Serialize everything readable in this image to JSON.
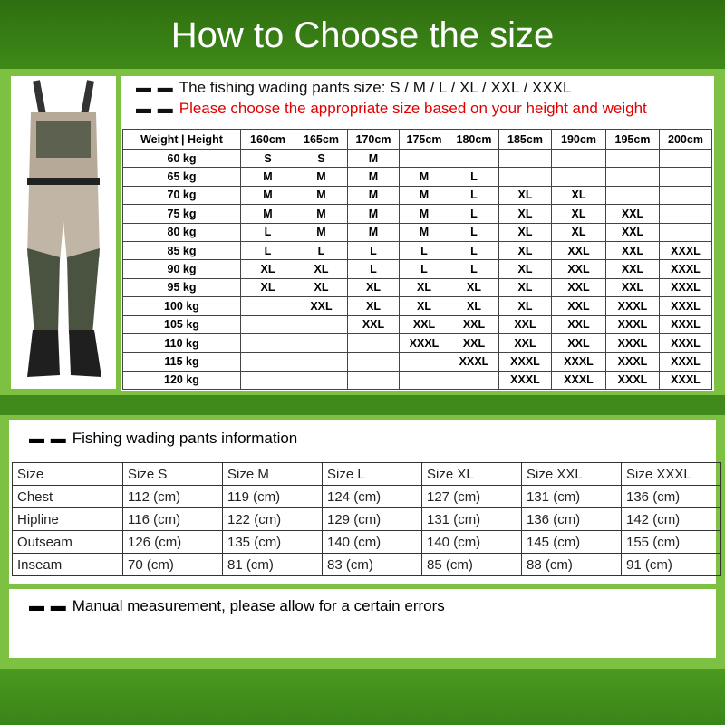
{
  "title": "How to Choose the size",
  "notes": {
    "sizes": "The fishing wading pants size: S / M /   L / XL / XXL / XXXL",
    "advice": "Please choose the appropriate size based on your height and weight",
    "dash": "▬ ▬"
  },
  "colors": {
    "header": "#2f6e10",
    "accent": "#7cc142",
    "warning_text": "#e00000"
  },
  "size_chart": {
    "corner": "Weight | Height",
    "heights": [
      "160cm",
      "165cm",
      "170cm",
      "175cm",
      "180cm",
      "185cm",
      "190cm",
      "195cm",
      "200cm"
    ],
    "rows": [
      {
        "weight": "60 kg",
        "sizes": [
          "S",
          "S",
          "M",
          "",
          "",
          "",
          "",
          "",
          ""
        ]
      },
      {
        "weight": "65 kg",
        "sizes": [
          "M",
          "M",
          "M",
          "M",
          "L",
          "",
          "",
          "",
          ""
        ]
      },
      {
        "weight": "70 kg",
        "sizes": [
          "M",
          "M",
          "M",
          "M",
          "L",
          "XL",
          "XL",
          "",
          ""
        ]
      },
      {
        "weight": "75 kg",
        "sizes": [
          "M",
          "M",
          "M",
          "M",
          "L",
          "XL",
          "XL",
          "XXL",
          ""
        ]
      },
      {
        "weight": "80 kg",
        "sizes": [
          "L",
          "M",
          "M",
          "M",
          "L",
          "XL",
          "XL",
          "XXL",
          ""
        ]
      },
      {
        "weight": "85 kg",
        "sizes": [
          "L",
          "L",
          "L",
          "L",
          "L",
          "XL",
          "XXL",
          "XXL",
          "XXXL"
        ]
      },
      {
        "weight": "90 kg",
        "sizes": [
          "XL",
          "XL",
          "L",
          "L",
          "L",
          "XL",
          "XXL",
          "XXL",
          "XXXL"
        ]
      },
      {
        "weight": "95 kg",
        "sizes": [
          "XL",
          "XL",
          "XL",
          "XL",
          "XL",
          "XL",
          "XXL",
          "XXL",
          "XXXL"
        ]
      },
      {
        "weight": "100 kg",
        "sizes": [
          "",
          "XXL",
          "XL",
          "XL",
          "XL",
          "XL",
          "XXL",
          "XXXL",
          "XXXL"
        ]
      },
      {
        "weight": "105 kg",
        "sizes": [
          "",
          "",
          "XXL",
          "XXL",
          "XXL",
          "XXL",
          "XXL",
          "XXXL",
          "XXXL"
        ]
      },
      {
        "weight": "110 kg",
        "sizes": [
          "",
          "",
          "",
          "XXXL",
          "XXL",
          "XXL",
          "XXL",
          "XXXL",
          "XXXL"
        ]
      },
      {
        "weight": "115 kg",
        "sizes": [
          "",
          "",
          "",
          "",
          "XXXL",
          "XXXL",
          "XXXL",
          "XXXL",
          "XXXL"
        ]
      },
      {
        "weight": "120 kg",
        "sizes": [
          "",
          "",
          "",
          "",
          "",
          "XXXL",
          "XXXL",
          "XXXL",
          "XXXL"
        ]
      }
    ]
  },
  "info": {
    "title": "Fishing  wading pants information",
    "header": [
      "Size",
      "Size S",
      "Size M",
      "Size L",
      "Size XL",
      "Size XXL",
      "Size XXXL"
    ],
    "rows": [
      [
        "Chest",
        "112 (cm)",
        "119 (cm)",
        "124 (cm)",
        "127 (cm)",
        "131 (cm)",
        "136 (cm)"
      ],
      [
        "Hipline",
        "116 (cm)",
        "122 (cm)",
        "129 (cm)",
        "131 (cm)",
        "136 (cm)",
        "142 (cm)"
      ],
      [
        "Outseam",
        "126 (cm)",
        "135 (cm)",
        "140 (cm)",
        "140 (cm)",
        "145 (cm)",
        "155 (cm)"
      ],
      [
        "Inseam",
        "70 (cm)",
        "81 (cm)",
        "83 (cm)",
        "85 (cm)",
        "88 (cm)",
        "91 (cm)"
      ]
    ]
  },
  "disclaimer": "Manual measurement, please allow for a certain errors"
}
